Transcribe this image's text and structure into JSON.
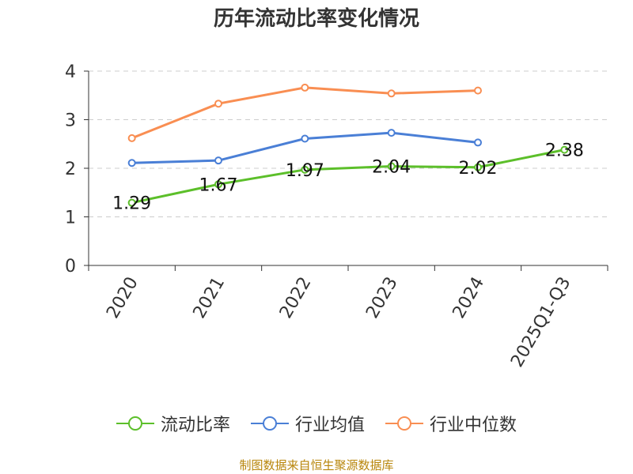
{
  "chart_data": {
    "type": "line",
    "title": "历年流动比率变化情况",
    "categories": [
      "2020",
      "2021",
      "2022",
      "2023",
      "2024",
      "2025Q1-Q3"
    ],
    "series": [
      {
        "name": "流动比率",
        "color": "#5cbf2a",
        "values": [
          1.29,
          1.67,
          1.97,
          2.04,
          2.02,
          2.38
        ],
        "labels": [
          "1.29",
          "1.67",
          "1.97",
          "2.04",
          "2.02",
          "2.38"
        ]
      },
      {
        "name": "行业均值",
        "color": "#4a7fd6",
        "values": [
          2.11,
          2.16,
          2.61,
          2.73,
          2.53,
          null
        ]
      },
      {
        "name": "行业中位数",
        "color": "#f98e52",
        "values": [
          2.62,
          3.33,
          3.66,
          3.54,
          3.6,
          null
        ]
      }
    ],
    "ylim": [
      0,
      4
    ],
    "yticks": [
      "0",
      "1",
      "2",
      "3",
      "4"
    ],
    "grid": true,
    "legend_position": "bottom"
  },
  "footer": {
    "source": "制图数据来自恒生聚源数据库"
  }
}
